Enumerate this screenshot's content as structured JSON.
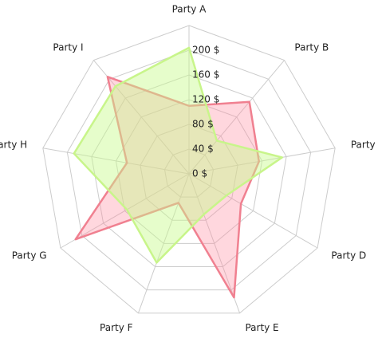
{
  "chart_data": {
    "type": "radar",
    "categories": [
      "Party A",
      "Party B",
      "Party C",
      "Party D",
      "Party E",
      "Party F",
      "Party G",
      "Party H",
      "Party I"
    ],
    "series": [
      {
        "color": "#f08090",
        "fill": "rgba(255,140,160,0.35)",
        "values": [
          110,
          152,
          115,
          97,
          213,
          50,
          212,
          102,
          205
        ]
      },
      {
        "color": "#c8f58a",
        "fill": "rgba(200,250,140,0.45)",
        "values": [
          204,
          70,
          153,
          70,
          70,
          153,
          116,
          189,
          185
        ]
      }
    ],
    "ylim": [
      0,
      240
    ],
    "yticks": [
      {
        "value": 0,
        "label": "0 $"
      },
      {
        "value": 40,
        "label": "40 $"
      },
      {
        "value": 80,
        "label": "80 $"
      },
      {
        "value": 120,
        "label": "120 $"
      },
      {
        "value": 160,
        "label": "160 $"
      },
      {
        "value": 200,
        "label": "200 $"
      }
    ],
    "grid": true
  }
}
